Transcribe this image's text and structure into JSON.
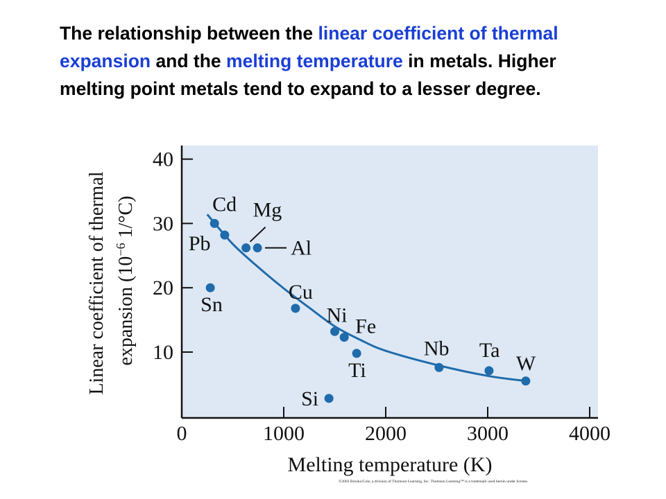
{
  "title": {
    "part1": "The relationship between the ",
    "highlight1": "linear coefficient of thermal expansion",
    "part2": " and the ",
    "highlight2": "melting temperature",
    "part3": " in metals.  Higher melting point metals tend to expand to a lesser degree."
  },
  "colors": {
    "plot_background": "#dde8f4",
    "marker": "#1f6bab",
    "curve": "#1f6bab",
    "highlight_text": "#1a3fd6"
  },
  "copyright": "©2003 Brooks/Cole, a division of Thomson Learning, Inc.  Thomson Learning™ is a trademark used herein under license.",
  "chart_data": {
    "type": "scatter",
    "xlabel": "Melting temperature (K)",
    "ylabel": "Linear coefficient of thermal expansion (10⁻⁶ 1/°C)",
    "ylabel_line1": "Linear coefficient of thermal",
    "ylabel_line2": "expansion (10",
    "ylabel_exp": "−6",
    "ylabel_line2_end": " 1/°C)",
    "xlim": [
      0,
      4100
    ],
    "ylim": [
      0,
      42
    ],
    "x_ticks": [
      0,
      1000,
      2000,
      3000,
      4000
    ],
    "y_ticks": [
      10,
      20,
      30,
      40
    ],
    "grid": false,
    "legend": "none",
    "points": [
      {
        "label": "Cd",
        "x": 321,
        "y": 30.0
      },
      {
        "label": "Pb",
        "x": 421,
        "y": 28.2
      },
      {
        "label": "Mg",
        "x": 630,
        "y": 26.2
      },
      {
        "label": "Al",
        "x": 742,
        "y": 26.2
      },
      {
        "label": "Sn",
        "x": 280,
        "y": 20.0
      },
      {
        "label": "Cu",
        "x": 1115,
        "y": 16.8
      },
      {
        "label": "Ni",
        "x": 1500,
        "y": 13.2
      },
      {
        "label": "Fe",
        "x": 1593,
        "y": 12.3
      },
      {
        "label": "Ti",
        "x": 1715,
        "y": 9.8
      },
      {
        "label": "Nb",
        "x": 2523,
        "y": 7.6
      },
      {
        "label": "Ta",
        "x": 3013,
        "y": 7.1
      },
      {
        "label": "W",
        "x": 3373,
        "y": 5.5
      },
      {
        "label": "Si",
        "x": 1443,
        "y": 2.8
      }
    ],
    "trend": [
      {
        "x": 250,
        "y": 31.4
      },
      {
        "x": 500,
        "y": 26.8
      },
      {
        "x": 750,
        "y": 23.2
      },
      {
        "x": 1000,
        "y": 19.9
      },
      {
        "x": 1250,
        "y": 16.9
      },
      {
        "x": 1500,
        "y": 14.0
      },
      {
        "x": 1750,
        "y": 11.9
      },
      {
        "x": 2000,
        "y": 10.2
      },
      {
        "x": 2500,
        "y": 8.0
      },
      {
        "x": 3000,
        "y": 6.3
      },
      {
        "x": 3373,
        "y": 5.5
      }
    ]
  }
}
